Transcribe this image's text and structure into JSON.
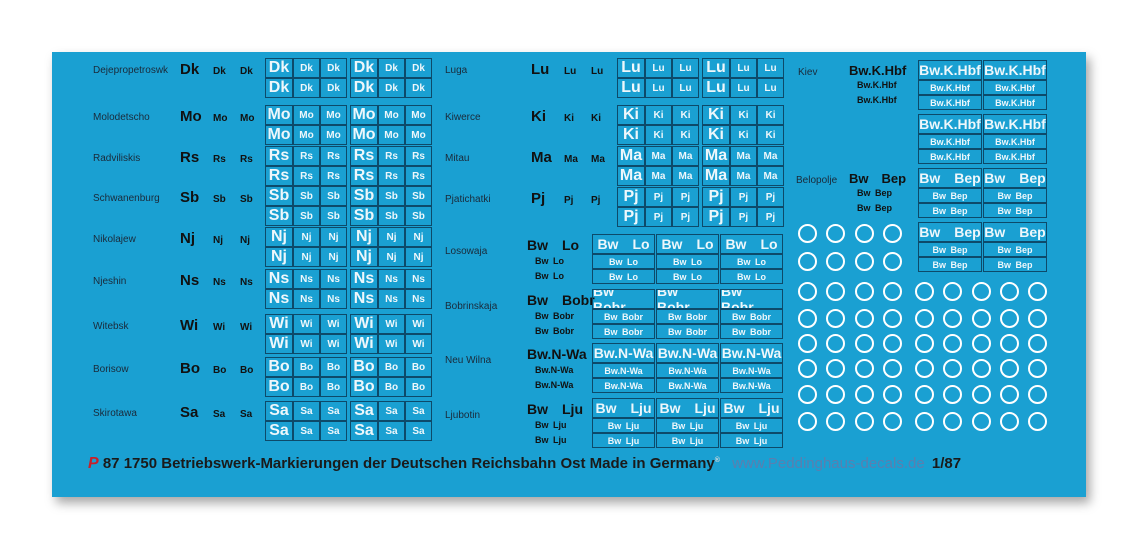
{
  "sheet_colors": {
    "background": "#1aa0d2",
    "cell_border": "#0d4a6a",
    "cell_text": "#eef7fb"
  },
  "left_groups": [
    {
      "station": "Dejepropetroswk",
      "code": "Dk"
    },
    {
      "station": "Molodetscho",
      "code": "Mo"
    },
    {
      "station": "Radviliskis",
      "code": "Rs"
    },
    {
      "station": "Schwanenburg",
      "code": "Sb"
    },
    {
      "station": "Nikolajew",
      "code": "Nj"
    },
    {
      "station": "Njeshin",
      "code": "Ns"
    },
    {
      "station": "Witebsk",
      "code": "Wi"
    },
    {
      "station": "Borisow",
      "code": "Bo"
    },
    {
      "station": "Skirotawa",
      "code": "Sa"
    }
  ],
  "middle_groups": [
    {
      "station": "Luga",
      "code": "Lu"
    },
    {
      "station": "Kiwerce",
      "code": "Ki"
    },
    {
      "station": "Mitau",
      "code": "Ma"
    },
    {
      "station": "Pjatichatki",
      "code": "Pj"
    }
  ],
  "bw_groups": [
    {
      "station": "Losowaja",
      "a": "Bw",
      "b": "Lo"
    },
    {
      "station": "Bobrinskaja",
      "a": "Bw",
      "b": "Bobr"
    },
    {
      "station": "Neu Wilna",
      "a": "Bw.N-Wa",
      "b": ""
    },
    {
      "station": "Ljubotin",
      "a": "Bw",
      "b": "Lju"
    }
  ],
  "right_groups": [
    {
      "station": "Kiev",
      "a": "Bw.K.Hbf",
      "b": ""
    },
    {
      "station": "Belopolje",
      "a": "Bw",
      "b": "Bep"
    }
  ],
  "footer": {
    "logo": "P",
    "text": "87 1750 Betriebswerk-Markierungen der Deutschen Reichsbahn Ost Made in Germany",
    "registered": "®",
    "website": "www.Peddinghaus-decals.de",
    "scale": "1/87"
  }
}
